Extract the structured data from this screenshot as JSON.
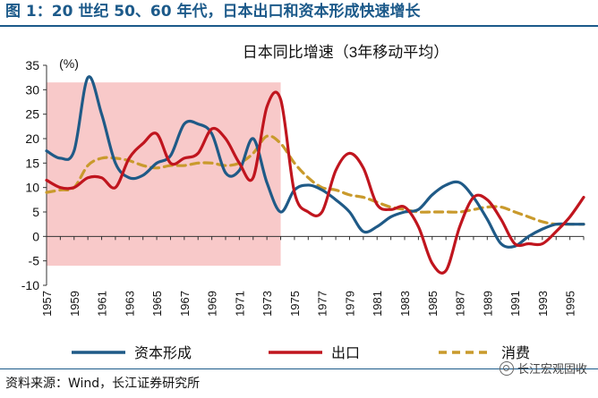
{
  "figure_title": "图 1：20 世纪 50、60 年代，日本出口和资本形成快速增长",
  "source": "资料来源：Wind，长江证券研究所",
  "watermark": "长江宏观固收",
  "chart_data": {
    "type": "line",
    "title": "日本同比增速（3年移动平均）",
    "ylabel": "(%)",
    "xlabel": "",
    "x": [
      1957,
      1958,
      1959,
      1960,
      1961,
      1962,
      1963,
      1964,
      1965,
      1966,
      1967,
      1968,
      1969,
      1970,
      1971,
      1972,
      1973,
      1974,
      1975,
      1976,
      1977,
      1978,
      1979,
      1980,
      1981,
      1982,
      1983,
      1984,
      1985,
      1986,
      1987,
      1988,
      1989,
      1990,
      1991,
      1992,
      1993,
      1994,
      1995,
      1996
    ],
    "xticks": [
      1957,
      1959,
      1961,
      1963,
      1965,
      1967,
      1969,
      1971,
      1973,
      1975,
      1977,
      1979,
      1981,
      1983,
      1985,
      1987,
      1989,
      1991,
      1993,
      1995
    ],
    "ylim": [
      -10,
      35
    ],
    "yticks": [
      -10,
      -5,
      0,
      5,
      10,
      15,
      20,
      25,
      30,
      35
    ],
    "highlight": {
      "x_start": 1957,
      "x_end": 1974,
      "y_start": -6,
      "y_end": 31.5,
      "color": "#f8c9c9"
    },
    "series": [
      {
        "name": "资本形成",
        "color": "#1f5a87",
        "dash": false,
        "values": [
          17.5,
          16,
          17.5,
          32.5,
          25,
          15,
          12,
          12.5,
          15,
          16.5,
          23,
          23,
          21,
          13,
          13.5,
          20,
          11,
          5,
          9.5,
          10.5,
          9.5,
          7.5,
          5,
          1,
          2,
          4,
          5,
          5.5,
          8.5,
          10.5,
          11,
          8,
          3.5,
          -1.5,
          -2,
          0,
          1.5,
          2.5,
          2.5,
          2.5
        ]
      },
      {
        "name": "出口",
        "color": "#c0151e",
        "dash": false,
        "values": [
          11.5,
          10,
          10,
          12,
          12,
          10,
          16,
          19,
          21,
          15,
          16,
          17,
          22,
          20,
          15,
          12,
          26.5,
          28,
          9,
          5,
          5,
          13.5,
          17,
          14,
          6.5,
          5.5,
          6,
          2,
          -5.5,
          -7,
          2,
          8,
          7.5,
          3.5,
          -1.5,
          -1.5,
          -1.5,
          1,
          4,
          8
        ]
      },
      {
        "name": "消费",
        "color": "#c99a2c",
        "dash": true,
        "values": [
          9,
          9.5,
          10,
          14.5,
          16,
          16,
          15.5,
          14.5,
          14,
          14.5,
          14.5,
          15,
          15,
          14.5,
          15,
          17,
          20.5,
          19,
          15,
          12,
          10,
          9.5,
          8.5,
          8,
          7,
          6,
          5.5,
          5,
          5,
          5,
          5,
          5.5,
          6,
          6,
          5,
          4,
          3,
          2.5,
          2.5,
          2.5
        ]
      }
    ]
  }
}
